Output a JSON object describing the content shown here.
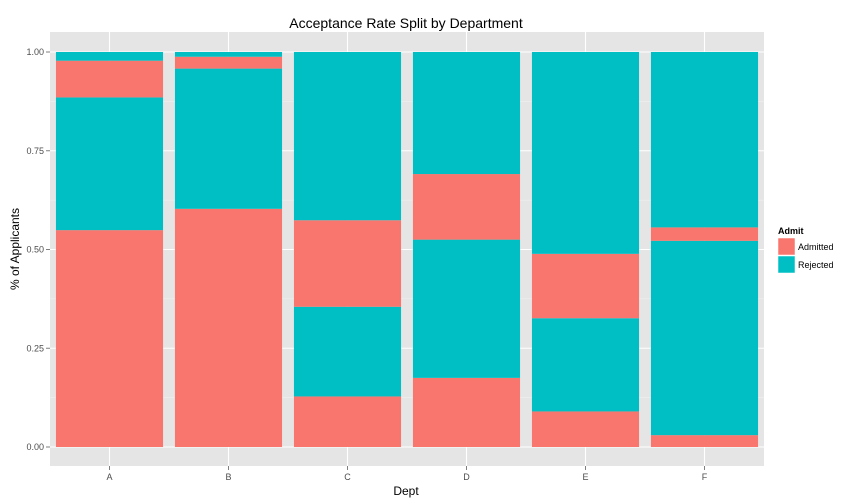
{
  "chart_data": {
    "type": "bar",
    "stacked": true,
    "title": "Acceptance Rate Split by Department",
    "xlabel": "Dept",
    "ylabel": "% of Applicants",
    "ylim": [
      0,
      1
    ],
    "yticks": [
      "0.00",
      "0.25",
      "0.50",
      "0.75",
      "1.00"
    ],
    "grid": true,
    "legend_placement": "right",
    "categories": [
      "A",
      "B",
      "C",
      "D",
      "E",
      "F"
    ],
    "legend": {
      "title": "Admit",
      "items": [
        {
          "label": "Admitted",
          "color": "#F8766D"
        },
        {
          "label": "Rejected",
          "color": "#00BFC4"
        }
      ]
    },
    "segments": [
      [
        {
          "admit": "Admitted",
          "value": 0.549
        },
        {
          "admit": "Rejected",
          "value": 0.336
        },
        {
          "admit": "Admitted",
          "value": 0.093
        },
        {
          "admit": "Rejected",
          "value": 0.022
        }
      ],
      [
        {
          "admit": "Admitted",
          "value": 0.603
        },
        {
          "admit": "Rejected",
          "value": 0.355
        },
        {
          "admit": "Admitted",
          "value": 0.03
        },
        {
          "admit": "Rejected",
          "value": 0.012
        }
      ],
      [
        {
          "admit": "Admitted",
          "value": 0.128
        },
        {
          "admit": "Rejected",
          "value": 0.227
        },
        {
          "admit": "Admitted",
          "value": 0.219
        },
        {
          "admit": "Rejected",
          "value": 0.426
        }
      ],
      [
        {
          "admit": "Admitted",
          "value": 0.175
        },
        {
          "admit": "Rejected",
          "value": 0.35
        },
        {
          "admit": "Admitted",
          "value": 0.166
        },
        {
          "admit": "Rejected",
          "value": 0.309
        }
      ],
      [
        {
          "admit": "Admitted",
          "value": 0.09
        },
        {
          "admit": "Rejected",
          "value": 0.236
        },
        {
          "admit": "Admitted",
          "value": 0.163
        },
        {
          "admit": "Rejected",
          "value": 0.511
        }
      ],
      [
        {
          "admit": "Admitted",
          "value": 0.03
        },
        {
          "admit": "Rejected",
          "value": 0.492
        },
        {
          "admit": "Admitted",
          "value": 0.034
        },
        {
          "admit": "Rejected",
          "value": 0.444
        }
      ]
    ]
  }
}
